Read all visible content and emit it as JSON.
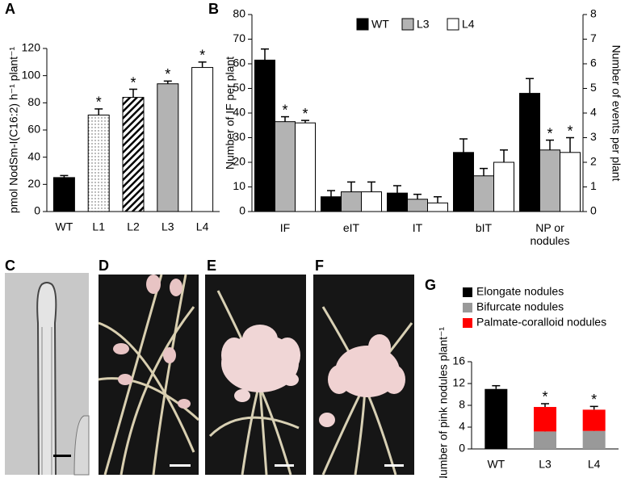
{
  "chart_data": [
    {
      "type": "bar",
      "panel": "A",
      "ylabel": "pmol NodSm-I(C16:2) h⁻¹ plant⁻¹",
      "categories": [
        "WT",
        "L1",
        "L2",
        "L3",
        "L4"
      ],
      "values": [
        25,
        71,
        84,
        94,
        106
      ],
      "errors": [
        1.5,
        4.5,
        6,
        2,
        4
      ],
      "significance": [
        null,
        "*",
        "*",
        "*",
        "*"
      ],
      "colors": [
        "#000000",
        "dotted",
        "hatched",
        "#b3b3b3",
        "#ffffff"
      ],
      "ylim": [
        0,
        120
      ],
      "yticks": [
        0,
        20,
        40,
        60,
        80,
        100,
        120
      ]
    },
    {
      "type": "grouped_bar",
      "panel": "B",
      "ylabel": "Number of IF per plant",
      "y2label": "Number of events per plant",
      "categories": [
        "IF",
        "eIT",
        "IT",
        "bIT",
        "NP or nodules"
      ],
      "category_axis": [
        "y",
        "y2",
        "y2",
        "y2",
        "y2"
      ],
      "series": [
        {
          "name": "WT",
          "color": "#000000",
          "values": [
            61.5,
            0.6,
            0.75,
            2.4,
            4.8
          ],
          "errors": [
            4.5,
            0.25,
            0.3,
            0.55,
            0.6
          ],
          "significance": [
            null,
            null,
            null,
            null,
            null
          ]
        },
        {
          "name": "L3",
          "color": "#b3b3b3",
          "values": [
            36.5,
            0.8,
            0.5,
            1.45,
            2.5
          ],
          "errors": [
            2,
            0.4,
            0.2,
            0.3,
            0.4
          ],
          "significance": [
            "*",
            null,
            null,
            null,
            "*"
          ]
        },
        {
          "name": "L4",
          "color": "#ffffff",
          "values": [
            36,
            0.8,
            0.35,
            2.0,
            2.4
          ],
          "errors": [
            1,
            0.4,
            0.25,
            0.5,
            0.6
          ],
          "significance": [
            "*",
            null,
            null,
            null,
            "*"
          ]
        }
      ],
      "ylim": [
        0,
        80
      ],
      "yticks": [
        0,
        10,
        20,
        30,
        40,
        50,
        60,
        70,
        80
      ],
      "y2lim": [
        0,
        8
      ],
      "y2ticks": [
        0,
        1,
        2,
        3,
        4,
        5,
        6,
        7,
        8
      ]
    },
    {
      "type": "stacked_bar",
      "panel": "G",
      "ylabel": "Number of pink nodules plant⁻¹",
      "categories": [
        "WT",
        "L3",
        "L4"
      ],
      "series": [
        {
          "name": "Elongate nodules",
          "color": "#000000",
          "values": [
            11,
            0,
            0
          ],
          "errors": [
            0.6,
            0,
            0
          ]
        },
        {
          "name": "Bifurcate nodules",
          "color": "#999999",
          "values": [
            0,
            3.2,
            3.3
          ],
          "errors": [
            0,
            0.4,
            0.4
          ]
        },
        {
          "name": "Palmate-coralloid nodules",
          "color": "#ff0000",
          "values": [
            0,
            4.5,
            3.9
          ],
          "errors": [
            0,
            0.6,
            0.6
          ]
        }
      ],
      "significance": [
        null,
        "*",
        "*"
      ],
      "ylim": [
        0,
        16
      ],
      "yticks": [
        0,
        4,
        8,
        12,
        16
      ]
    }
  ],
  "photo_panels": [
    {
      "panel": "C"
    },
    {
      "panel": "D"
    },
    {
      "panel": "E"
    },
    {
      "panel": "F"
    }
  ]
}
